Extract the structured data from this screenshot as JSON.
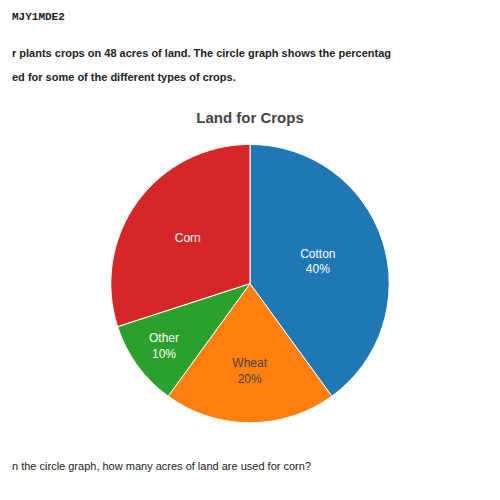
{
  "chart_data": {
    "type": "pie",
    "title": "Land for Crops",
    "categories": [
      "Cotton\n40%",
      "Wheat\n20%",
      "Other\n10%",
      "Corn"
    ],
    "values": [
      40,
      20,
      10,
      30
    ],
    "annotations": [
      "MJY1MDE2",
      "r plants crops on 48 acres of land. The circle graph shows the percentag",
      "ed for some of the different types of crops.",
      "n the circle graph, how many acres of land are used for corn?"
    ]
  }
}
